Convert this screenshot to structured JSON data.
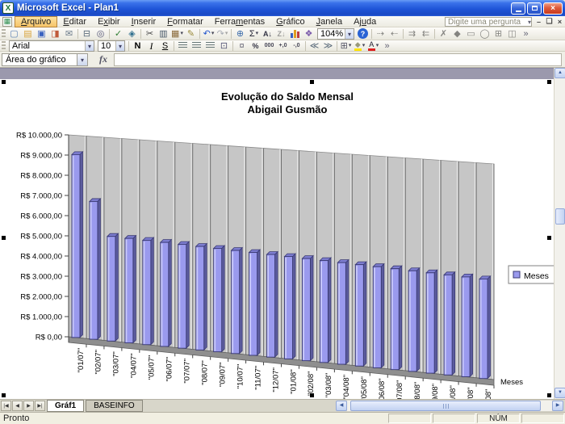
{
  "window": {
    "title": "Microsoft Excel - Plan1",
    "question_box": "Digite uma pergunta",
    "titlebar_buttons": [
      "minimize",
      "restore",
      "close"
    ],
    "workbook_buttons": [
      "minimize",
      "restore",
      "close"
    ]
  },
  "menu_bar": {
    "items": [
      {
        "name": "menu-arquivo",
        "label": "Arquivo",
        "underline": 0,
        "active": true
      },
      {
        "name": "menu-editar",
        "label": "Editar",
        "underline": 0
      },
      {
        "name": "menu-exibir",
        "label": "Exibir",
        "underline": 1
      },
      {
        "name": "menu-inserir",
        "label": "Inserir",
        "underline": 0
      },
      {
        "name": "menu-formatar",
        "label": "Formatar",
        "underline": 0
      },
      {
        "name": "menu-ferramentas",
        "label": "Ferramentas",
        "underline": 5
      },
      {
        "name": "menu-grafico",
        "label": "Gráfico",
        "underline": 0
      },
      {
        "name": "menu-janela",
        "label": "Janela",
        "underline": 0
      },
      {
        "name": "menu-ajuda",
        "label": "Ajuda",
        "underline": 2
      }
    ]
  },
  "toolbars": {
    "standard": [
      {
        "name": "new-workbook-button",
        "glyph": "▢",
        "color": "#5b7fb4"
      },
      {
        "name": "open-button",
        "glyph": "▤",
        "color": "#d9a43b"
      },
      {
        "name": "save-button",
        "glyph": "▣",
        "color": "#3a62c0"
      },
      {
        "name": "permission-button",
        "glyph": "◨",
        "color": "#c05a3a"
      },
      {
        "name": "email-button",
        "glyph": "✉",
        "color": "#6a7a8a"
      },
      {
        "sep": true
      },
      {
        "name": "print-button",
        "glyph": "⊟",
        "color": "#556677"
      },
      {
        "name": "print-preview-button",
        "glyph": "◎",
        "color": "#557"
      },
      {
        "sep": true
      },
      {
        "name": "spelling-button",
        "glyph": "✓",
        "color": "#2e7d32"
      },
      {
        "name": "research-button",
        "glyph": "◈",
        "color": "#2e6e8e"
      },
      {
        "sep": true
      },
      {
        "name": "cut-button",
        "glyph": "✂",
        "color": "#444"
      },
      {
        "name": "copy-button",
        "glyph": "▥",
        "color": "#456"
      },
      {
        "name": "paste-button",
        "glyph": "▦",
        "color": "#8a6a3a",
        "dropdown": true
      },
      {
        "name": "format-painter-button",
        "glyph": "✎",
        "color": "#9a8a3a"
      },
      {
        "sep": true
      },
      {
        "name": "undo-button",
        "glyph": "↶",
        "color": "#2255cc",
        "dropdown": true
      },
      {
        "name": "redo-button",
        "glyph": "↷",
        "color": "#2255cc",
        "dropdown": true,
        "disabled": true
      },
      {
        "sep": true
      },
      {
        "name": "hyperlink-button",
        "glyph": "⊕",
        "color": "#3a6aaa"
      },
      {
        "name": "autosum-button",
        "glyph": "Σ",
        "color": "#223",
        "dropdown": true
      },
      {
        "name": "sort-ascending-button",
        "text": "A↓",
        "color": "#334"
      },
      {
        "name": "sort-descending-button",
        "text": "Z↓",
        "color": "#334",
        "disabled": true
      },
      {
        "name": "chart-wizard-button",
        "kind": "chart"
      },
      {
        "name": "drawing-button",
        "glyph": "❖",
        "color": "#7a5aaa"
      },
      {
        "name": "zoom-combo",
        "kind": "zoom",
        "value": "104%"
      },
      {
        "name": "help-button",
        "kind": "help",
        "glyph": "?"
      },
      {
        "sep": true
      },
      {
        "name": "trace-precedents-button",
        "glyph": "⇢",
        "disabled": true
      },
      {
        "name": "remove-precedent-arrows-button",
        "glyph": "⇠",
        "disabled": true
      },
      {
        "sep": true
      },
      {
        "name": "trace-dependents-button",
        "glyph": "⇉",
        "disabled": true
      },
      {
        "name": "remove-dependent-arrows-button",
        "glyph": "⇇",
        "disabled": true
      },
      {
        "sep": true
      },
      {
        "name": "remove-all-arrows-button",
        "glyph": "✗",
        "disabled": true
      },
      {
        "name": "error-checking-button",
        "glyph": "◆",
        "disabled": true
      },
      {
        "name": "new-comment-button",
        "glyph": "▭",
        "disabled": true
      },
      {
        "name": "circle-invalid-data-button",
        "glyph": "◯",
        "disabled": true
      },
      {
        "name": "evaluate-formula-button",
        "glyph": "⊞",
        "disabled": true
      },
      {
        "name": "watch-window-button",
        "glyph": "◫",
        "disabled": true
      },
      {
        "name": "toolbar-options-button",
        "glyph": "»",
        "color": "#667"
      }
    ],
    "formatting": {
      "font_name": "Arial",
      "font_size": "10",
      "buttons": [
        {
          "sep": true
        },
        {
          "name": "bold-button",
          "label": "N",
          "cls": "b"
        },
        {
          "name": "italic-button",
          "label": "I",
          "cls": "i"
        },
        {
          "name": "underline-button",
          "label": "S",
          "cls": "u"
        },
        {
          "sep": true
        },
        {
          "name": "align-left-button",
          "kind": "stripes"
        },
        {
          "name": "align-center-button",
          "kind": "stripes"
        },
        {
          "name": "align-right-button",
          "kind": "stripes"
        },
        {
          "name": "merge-center-button",
          "glyph": "⊡",
          "color": "#557"
        },
        {
          "sep": true
        },
        {
          "name": "currency-style-button",
          "glyph": "¤",
          "color": "#667"
        },
        {
          "name": "percent-style-button",
          "text": "%",
          "color": "#334"
        },
        {
          "name": "thousands-style-button",
          "tiny": "000"
        },
        {
          "name": "increase-decimal-button",
          "tiny": "+,0"
        },
        {
          "name": "decrease-decimal-button",
          "tiny": "-,0"
        },
        {
          "sep": true
        },
        {
          "name": "decrease-indent-button",
          "glyph": "≪",
          "color": "#567"
        },
        {
          "name": "increase-indent-button",
          "glyph": "≫",
          "color": "#567"
        },
        {
          "sep": true
        },
        {
          "name": "borders-button",
          "glyph": "⊞",
          "color": "#556",
          "dropdown": true
        },
        {
          "name": "fill-color-button",
          "glyph": "◆",
          "color": "#9a9a7a",
          "underbar": "#ffe400",
          "dropdown": true
        },
        {
          "name": "font-color-button",
          "text": "A",
          "color": "#223",
          "underbar": "#dd2222",
          "dropdown": true
        },
        {
          "name": "toolbar-options-button-2",
          "glyph": "»",
          "color": "#667"
        }
      ]
    }
  },
  "formula_bar": {
    "name_box": "Área do gráfico",
    "fx": "fx",
    "value": ""
  },
  "chart_data": {
    "type": "bar",
    "is_3d": true,
    "title": "Evolução do Saldo Mensal",
    "subtitle": "Abigail Gusmão",
    "categories": [
      "\"01/07\"",
      "\"02/07\"",
      "\"03/07\"",
      "\"04/07\"",
      "\"05/07\"",
      "\"06/07\"",
      "\"07/07\"",
      "\"08/07\"",
      "\"09/07\"",
      "\"10/07\"",
      "\"11/07\"",
      "\"12/07\"",
      "\"01/08\"",
      "\"02/08\"",
      "\"03/08\"",
      "\"04/08\"",
      "\"05/08\"",
      "\"06/08\"",
      "\"07/08\"",
      "\"08/08\"",
      "\"09/08\"",
      "\"10/08\"",
      "\"11/08\"",
      "\"12/08\""
    ],
    "series": [
      {
        "name": "Meses",
        "values": [
          9050,
          6800,
          5150,
          5125,
          5100,
          5075,
          5050,
          5025,
          5000,
          4975,
          4950,
          4925,
          4900,
          4875,
          4850,
          4825,
          4800,
          4775,
          4750,
          4725,
          4700,
          4675,
          4650,
          4625
        ]
      }
    ],
    "xlabel": "Meses",
    "ylabel": "",
    "ylim": [
      0,
      10000
    ],
    "ytick_step": 1000,
    "ytick_labels": [
      "R$ 0,00",
      "R$ 1.000,00",
      "R$ 2.000,00",
      "R$ 3.000,00",
      "R$ 4.000,00",
      "R$ 5.000,00",
      "R$ 6.000,00",
      "R$ 7.000,00",
      "R$ 8.000,00",
      "R$ 9.000,00",
      "R$ 10.000,00"
    ],
    "gridlines": false,
    "legend": {
      "position": "right",
      "entries": [
        "Meses"
      ]
    },
    "colors": {
      "bar_face": "#9a9aee",
      "bar_highlight": "#cacafb",
      "bar_side": "#5c5c9e",
      "bar_top": "#7d7dd0",
      "bar_stroke": "#3a3a74",
      "wall": "#c6c6c6",
      "wall_line": "#6f6f6f",
      "floor": "#8f8f8f"
    }
  },
  "sheet_tabs": {
    "nav": [
      "first",
      "prev",
      "next",
      "last"
    ],
    "tabs": [
      {
        "label": "Gráf1",
        "active": true
      },
      {
        "label": "BASEINFO",
        "active": false
      }
    ]
  },
  "status_bar": {
    "ready": "Pronto",
    "segments": [
      "",
      "",
      "NÚM",
      ""
    ]
  }
}
